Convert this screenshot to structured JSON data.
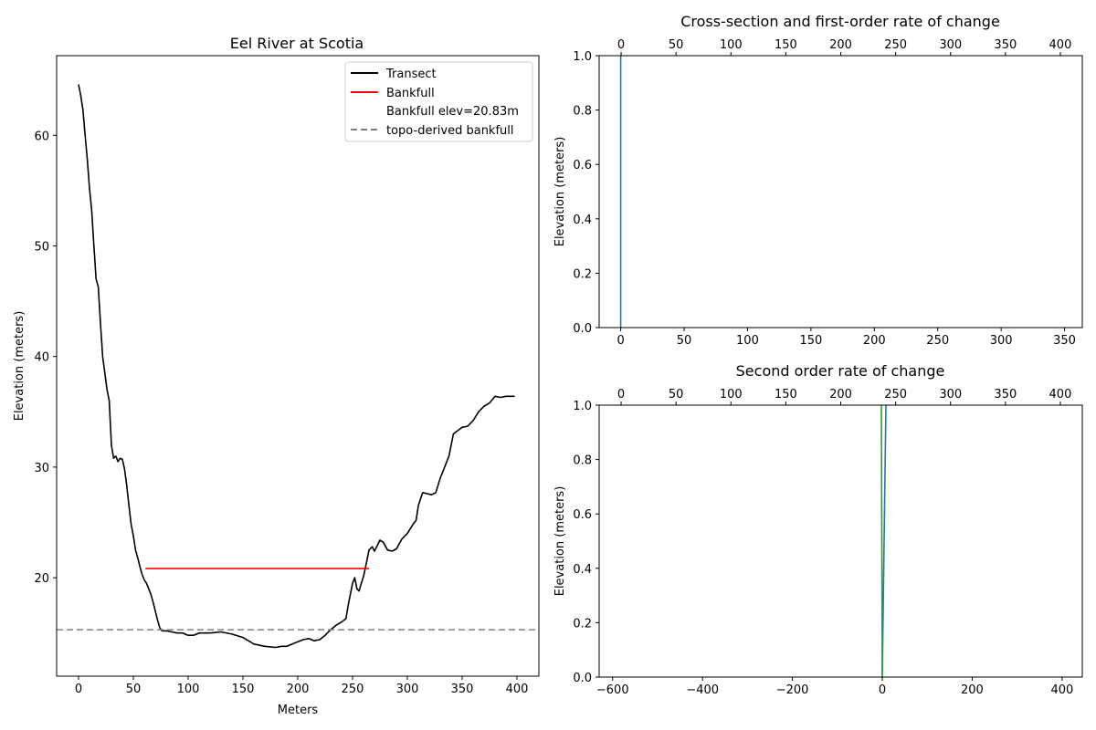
{
  "chart_data": [
    {
      "type": "line",
      "title": "Eel River at Scotia",
      "xlabel": "Meters",
      "ylabel": "Elevation (meters)",
      "xlim": [
        -20,
        420
      ],
      "ylim": [
        11.1,
        67.2
      ],
      "xticks": [
        0,
        50,
        100,
        150,
        200,
        250,
        300,
        350,
        400
      ],
      "yticks": [
        20,
        30,
        40,
        50,
        60
      ],
      "legend_position": "top-right",
      "legend": [
        {
          "label": "Transect",
          "style": "solid",
          "color": "#000000"
        },
        {
          "label": "Bankfull",
          "style": "solid",
          "color": "#ff0000"
        },
        {
          "label": "Bankfull elev=20.83m",
          "style": "none",
          "color": "#ffffff"
        },
        {
          "label": "topo-derived bankfull",
          "style": "dashed",
          "color": "#808080"
        }
      ],
      "series": [
        {
          "name": "Transect",
          "color": "#000000",
          "x": [
            0,
            2,
            4,
            6,
            8,
            10,
            12,
            14,
            16,
            18,
            20,
            22,
            24,
            26,
            28,
            30,
            32,
            34,
            36,
            38,
            40,
            42,
            44,
            46,
            48,
            50,
            52,
            54,
            56,
            58,
            60,
            62,
            64,
            66,
            68,
            70,
            72,
            74,
            76,
            80,
            85,
            90,
            95,
            100,
            105,
            110,
            115,
            120,
            130,
            140,
            150,
            155,
            160,
            170,
            180,
            185,
            190,
            195,
            200,
            205,
            210,
            215,
            220,
            225,
            230,
            235,
            240,
            244,
            246,
            248,
            250,
            252,
            254,
            256,
            258,
            260,
            263,
            265,
            268,
            270,
            273,
            275,
            278,
            282,
            286,
            290,
            295,
            300,
            305,
            308,
            310,
            314,
            318,
            322,
            326,
            330,
            334,
            338,
            342,
            346,
            350,
            355,
            360,
            365,
            370,
            375,
            380,
            385,
            390,
            395,
            398
          ],
          "y": [
            64.6,
            63.6,
            62.3,
            60.0,
            57.8,
            55.2,
            53.2,
            50.0,
            47.0,
            46.3,
            43.0,
            40.0,
            38.5,
            37.0,
            36.0,
            32.0,
            30.8,
            31.0,
            30.5,
            30.8,
            30.7,
            29.8,
            28.3,
            26.5,
            24.8,
            23.8,
            22.5,
            21.8,
            21.0,
            20.3,
            19.8,
            19.5,
            19.0,
            18.5,
            17.8,
            17.0,
            16.2,
            15.5,
            15.2,
            15.2,
            15.1,
            15.0,
            15.0,
            14.8,
            14.8,
            15.0,
            15.0,
            15.0,
            15.1,
            14.9,
            14.6,
            14.3,
            14.0,
            13.8,
            13.7,
            13.8,
            13.8,
            14.0,
            14.2,
            14.4,
            14.5,
            14.3,
            14.4,
            14.8,
            15.3,
            15.7,
            16.0,
            16.3,
            17.5,
            18.5,
            19.5,
            20.0,
            19.0,
            18.8,
            19.5,
            20.1,
            21.5,
            22.5,
            22.8,
            22.4,
            23.0,
            23.4,
            23.2,
            22.5,
            22.4,
            22.6,
            23.5,
            24.0,
            24.8,
            25.2,
            26.5,
            27.7,
            27.6,
            27.5,
            27.7,
            29.0,
            30.0,
            31.0,
            33.0,
            33.3,
            33.6,
            33.7,
            34.2,
            35.0,
            35.5,
            35.8,
            36.4,
            36.3,
            36.4,
            36.4,
            36.4
          ]
        },
        {
          "name": "Bankfull",
          "color": "#ff0000",
          "x": [
            61,
            265
          ],
          "y": [
            20.83,
            20.83
          ]
        },
        {
          "name": "topo-derived bankfull",
          "color": "#808080",
          "dashed": true,
          "y_constant": 15.3
        }
      ]
    },
    {
      "type": "line",
      "title": "Cross-section and first-order rate of change",
      "xlabel": "",
      "ylabel": "Elevation (meters)",
      "xlim": [
        -17,
        364
      ],
      "ylim": [
        0.0,
        1.0
      ],
      "xticks": [
        0,
        50,
        100,
        150,
        200,
        250,
        300,
        350
      ],
      "secondary_xlim": [
        -20,
        420
      ],
      "secondary_xticks": [
        0,
        50,
        100,
        150,
        200,
        250,
        300,
        350,
        400
      ],
      "yticks": [
        0.0,
        0.2,
        0.4,
        0.6,
        0.8,
        1.0
      ],
      "series": [
        {
          "color": "#1f77b4",
          "x": [
            0,
            0
          ],
          "y": [
            0.0,
            1.0
          ]
        }
      ]
    },
    {
      "type": "line",
      "title": "Second order rate of change",
      "xlabel": "",
      "ylabel": "Elevation (meters)",
      "xlim": [
        -630,
        445
      ],
      "ylim": [
        0.0,
        1.0
      ],
      "xticks": [
        -600,
        -400,
        -200,
        0,
        200,
        400
      ],
      "secondary_xlim": [
        -20,
        420
      ],
      "secondary_xticks": [
        0,
        50,
        100,
        150,
        200,
        250,
        300,
        350,
        400
      ],
      "yticks": [
        0.0,
        0.2,
        0.4,
        0.6,
        0.8,
        1.0
      ],
      "series": [
        {
          "color": "#1f77b4",
          "x": [
            0,
            8
          ],
          "y": [
            0.0,
            1.0
          ]
        },
        {
          "color": "#2ca02c",
          "x": [
            0,
            -2
          ],
          "y": [
            0.0,
            1.0
          ]
        }
      ]
    }
  ]
}
